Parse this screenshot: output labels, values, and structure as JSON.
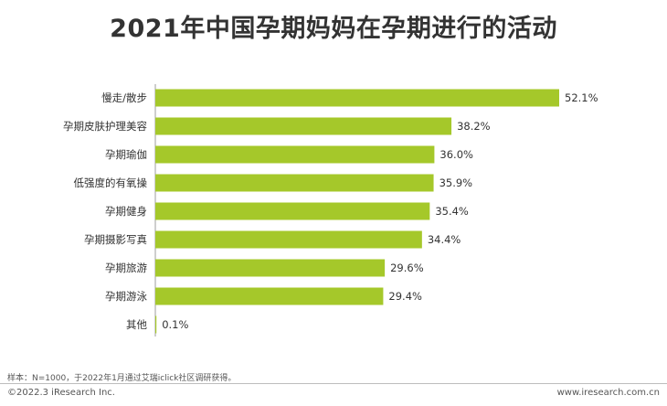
{
  "title": "2021年中国孕期妈妈在孕期进行的活动",
  "chart_data": {
    "type": "bar",
    "orientation": "horizontal",
    "categories": [
      "慢走/散步",
      "孕期皮肤护理美容",
      "孕期瑜伽",
      "低强度的有氧操",
      "孕期健身",
      "孕期摄影写真",
      "孕期旅游",
      "孕期游泳",
      "其他"
    ],
    "values": [
      52.1,
      38.2,
      36.0,
      35.9,
      35.4,
      34.4,
      29.6,
      29.4,
      0.1
    ],
    "value_labels": [
      "52.1%",
      "38.2%",
      "36.0%",
      "35.9%",
      "35.4%",
      "34.4%",
      "29.6%",
      "29.4%",
      "0.1%"
    ],
    "bar_color": "#a5c82a",
    "xlim": [
      0,
      52.1
    ]
  },
  "footer": {
    "note": "样本：N=1000，于2022年1月通过艾瑞iclick社区调研获得。",
    "copyright": "©2022.3 iResearch Inc.",
    "website": "www.iresearch.com.cn"
  }
}
